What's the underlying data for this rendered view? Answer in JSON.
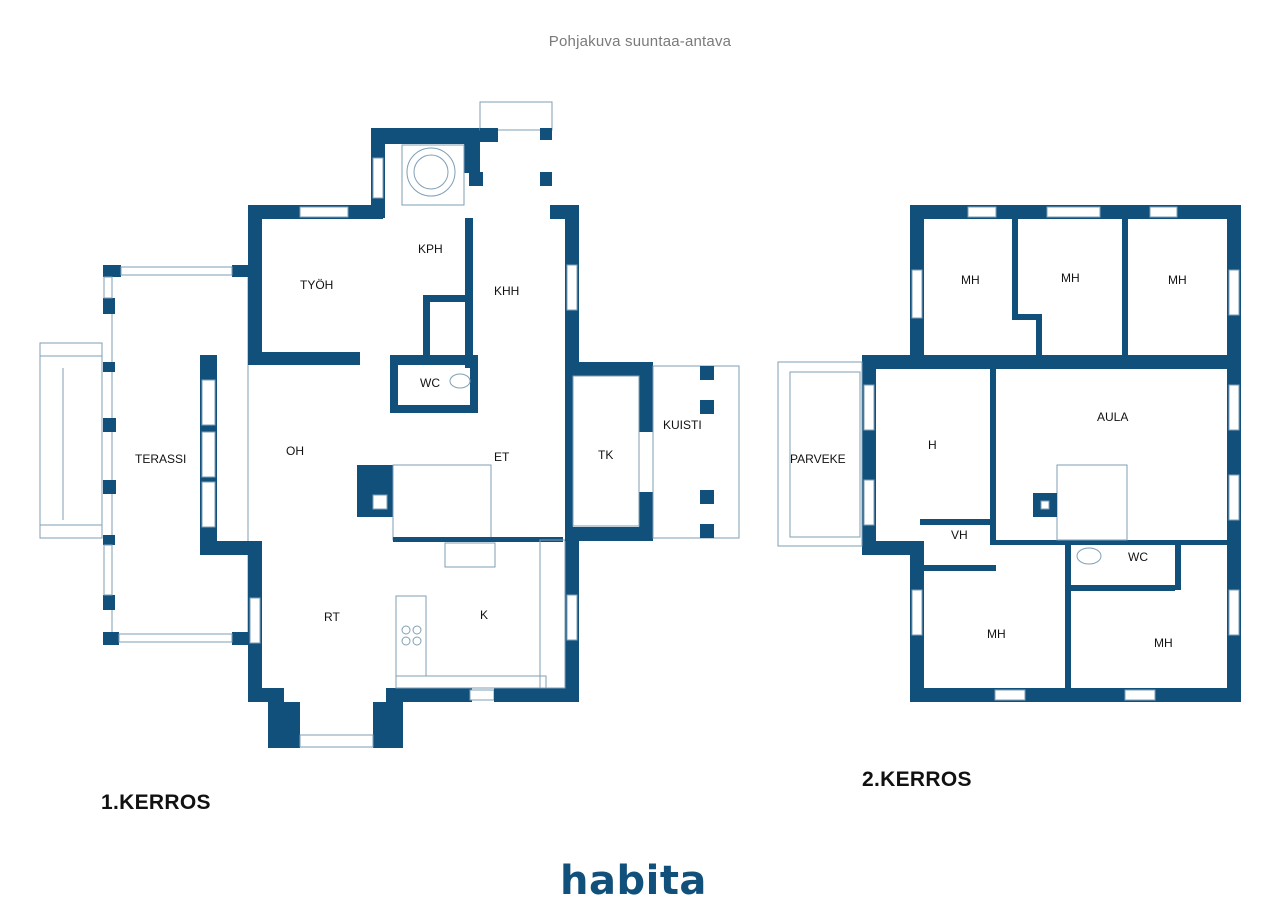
{
  "header": {
    "title": "Pohjakuva suuntaa-antava"
  },
  "colors": {
    "wall": "#12507c",
    "line": "#7f9fb6",
    "text": "#111111",
    "logo": "#12507c"
  },
  "floors": [
    {
      "label": "1.KERROS",
      "rooms": [
        "TERASSI",
        "TYÖH",
        "KPH",
        "KHH",
        "WC",
        "OH",
        "ET",
        "TK",
        "KUISTI",
        "RT",
        "K"
      ]
    },
    {
      "label": "2.KERROS",
      "rooms": [
        "MH",
        "MH",
        "MH",
        "PARVEKE",
        "H",
        "AULA",
        "VH",
        "WC",
        "MH",
        "MH"
      ]
    }
  ],
  "brand": {
    "logo_text": "habita"
  }
}
